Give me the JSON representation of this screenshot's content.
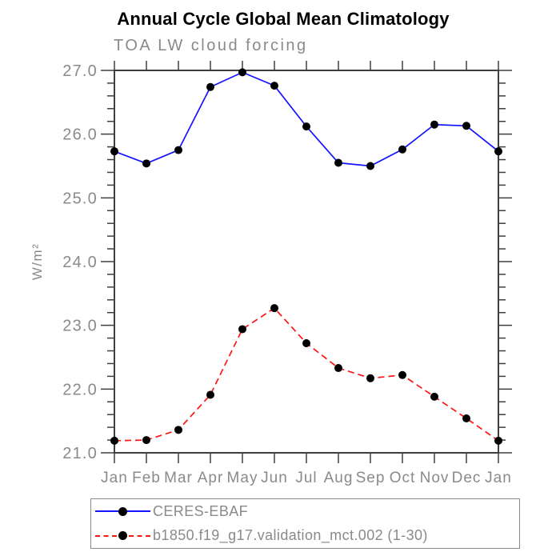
{
  "title": "Annual Cycle Global Mean Climatology",
  "subtitle": "TOA LW cloud forcing",
  "colors": {
    "title": "#000000",
    "text_gray": "#8a8a8a",
    "axis": "#3f3f3f",
    "marker": "#000000",
    "series1_blue": "#1414ff",
    "series2_red": "#ff1414",
    "legend_border": "#8a8a8a",
    "background": "#ffffff"
  },
  "chart_data": {
    "type": "line",
    "title": "Annual Cycle Global Mean Climatology",
    "subtitle": "TOA LW cloud forcing",
    "xlabel": "",
    "ylabel": "W/m²",
    "x_categories": [
      "Jan",
      "Feb",
      "Mar",
      "Apr",
      "May",
      "Jun",
      "Jul",
      "Aug",
      "Sep",
      "Oct",
      "Nov",
      "Dec",
      "Jan"
    ],
    "ylim": [
      21.0,
      27.0
    ],
    "yticks": [
      21,
      22,
      23,
      24,
      25,
      26,
      27
    ],
    "ytick_labels": [
      "21.0",
      "22.0",
      "23.0",
      "24.0",
      "25.0",
      "26.0",
      "27.0"
    ],
    "ytick_minor_step": 0.2,
    "grid": false,
    "legend_position": "bottom",
    "series": [
      {
        "name": "CERES-EBAF",
        "color": "#1414ff",
        "line_style": "solid",
        "marker": "circle",
        "marker_color": "#000000",
        "values": [
          25.73,
          25.54,
          25.75,
          26.74,
          26.97,
          26.76,
          26.12,
          25.55,
          25.5,
          25.76,
          26.15,
          26.13,
          25.73
        ]
      },
      {
        "name": "b1850.f19_g17.validation_mct.002 (1-30)",
        "color": "#ff1414",
        "line_style": "dashed",
        "marker": "circle",
        "marker_color": "#000000",
        "values": [
          21.19,
          21.2,
          21.36,
          21.91,
          22.94,
          23.27,
          22.72,
          22.33,
          22.17,
          22.22,
          21.88,
          21.54,
          21.19
        ]
      }
    ]
  }
}
